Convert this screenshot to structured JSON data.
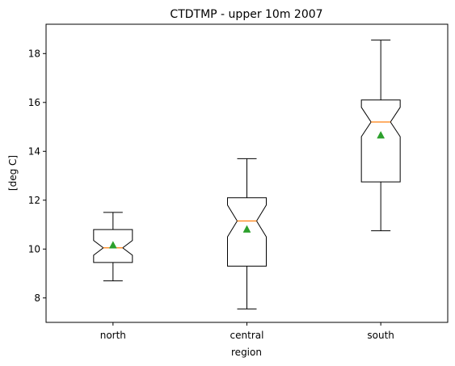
{
  "chart_data": {
    "type": "box",
    "title": "CTDTMP - upper 10m 2007",
    "xlabel": "region",
    "ylabel": "[deg C]",
    "categories": [
      "north",
      "central",
      "south"
    ],
    "ylim": [
      7.0,
      19.2
    ],
    "yticks": [
      8,
      10,
      12,
      14,
      16,
      18
    ],
    "ytick_labels": [
      "8",
      "10",
      "12",
      "14",
      "16",
      "18"
    ],
    "notched": true,
    "show_means": true,
    "boxes": [
      {
        "name": "north",
        "whisker_low": 8.7,
        "q1": 9.45,
        "median": 10.05,
        "q3": 10.8,
        "whisker_high": 11.5,
        "mean": 10.15,
        "notch_low": 9.75,
        "notch_high": 10.35
      },
      {
        "name": "central",
        "whisker_low": 7.55,
        "q1": 9.3,
        "median": 11.15,
        "q3": 12.1,
        "whisker_high": 13.7,
        "mean": 10.8,
        "notch_low": 10.5,
        "notch_high": 11.8
      },
      {
        "name": "south",
        "whisker_low": 10.75,
        "q1": 12.75,
        "median": 15.2,
        "q3": 16.1,
        "whisker_high": 18.55,
        "mean": 14.65,
        "notch_low": 14.6,
        "notch_high": 15.8
      }
    ],
    "colors": {
      "box": "#000000",
      "median": "#ff7f0e",
      "mean": "#2ca02c",
      "axes": "#000000"
    }
  }
}
